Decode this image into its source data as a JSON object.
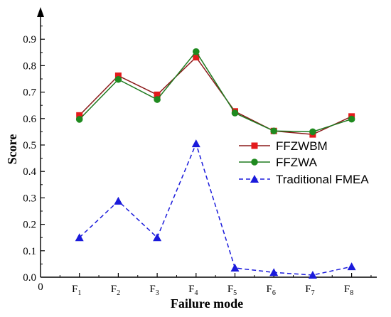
{
  "chart_data": {
    "type": "line",
    "title": "",
    "xlabel": "Failure mode",
    "ylabel": "Score",
    "origin_label": "0",
    "categories": [
      {
        "base": "F",
        "sub": "1"
      },
      {
        "base": "F",
        "sub": "2"
      },
      {
        "base": "F",
        "sub": "3"
      },
      {
        "base": "F",
        "sub": "4"
      },
      {
        "base": "F",
        "sub": "5"
      },
      {
        "base": "F",
        "sub": "6"
      },
      {
        "base": "F",
        "sub": "7"
      },
      {
        "base": "F",
        "sub": "8"
      }
    ],
    "ylim": [
      0,
      1.0
    ],
    "yticks": [
      "0.0",
      "0.1",
      "0.2",
      "0.3",
      "0.4",
      "0.5",
      "0.6",
      "0.7",
      "0.8",
      "0.9"
    ],
    "grid": false,
    "legend_position": "right",
    "series": [
      {
        "name": "FFZWBM",
        "values": [
          0.612,
          0.762,
          0.69,
          0.832,
          0.627,
          0.553,
          0.54,
          0.608
        ],
        "color": "#e41a1c",
        "line_color": "#8b1a1a",
        "marker": "square",
        "dash": "solid"
      },
      {
        "name": "FFZWA",
        "values": [
          0.597,
          0.748,
          0.672,
          0.853,
          0.621,
          0.553,
          0.55,
          0.598
        ],
        "color": "#1f8a1f",
        "line_color": "#1f7a1f",
        "marker": "circle",
        "dash": "solid"
      },
      {
        "name": "Traditional FMEA",
        "values": [
          0.15,
          0.288,
          0.15,
          0.505,
          0.035,
          0.018,
          0.008,
          0.04
        ],
        "color": "#1a1adb",
        "line_color": "#1a1adb",
        "marker": "triangle",
        "dash": "dashed"
      }
    ]
  }
}
